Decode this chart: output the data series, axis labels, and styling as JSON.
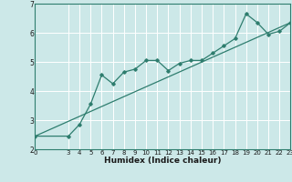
{
  "title": "",
  "xlabel": "Humidex (Indice chaleur)",
  "bg_color": "#cce8e8",
  "grid_color": "#ffffff",
  "line_color": "#2e7d6e",
  "spine_color": "#2e7d6e",
  "xlim": [
    0,
    23
  ],
  "ylim": [
    2,
    7
  ],
  "yticks": [
    2,
    3,
    4,
    5,
    6,
    7
  ],
  "xticks": [
    0,
    3,
    4,
    5,
    6,
    7,
    8,
    9,
    10,
    11,
    12,
    13,
    14,
    15,
    16,
    17,
    18,
    19,
    20,
    21,
    22,
    23
  ],
  "scatter_x": [
    0,
    3,
    4,
    5,
    6,
    7,
    8,
    9,
    10,
    11,
    12,
    13,
    14,
    15,
    16,
    17,
    18,
    19,
    20,
    21,
    22,
    23
  ],
  "scatter_y": [
    2.45,
    2.45,
    2.85,
    3.55,
    4.55,
    4.25,
    4.65,
    4.75,
    5.05,
    5.05,
    4.7,
    4.95,
    5.05,
    5.05,
    5.3,
    5.55,
    5.8,
    6.65,
    6.35,
    5.95,
    6.05,
    6.35
  ],
  "trend_x": [
    0,
    23
  ],
  "trend_y": [
    2.45,
    6.35
  ],
  "xlabel_fontsize": 6.5,
  "tick_fontsize_x": 5.0,
  "tick_fontsize_y": 5.5
}
